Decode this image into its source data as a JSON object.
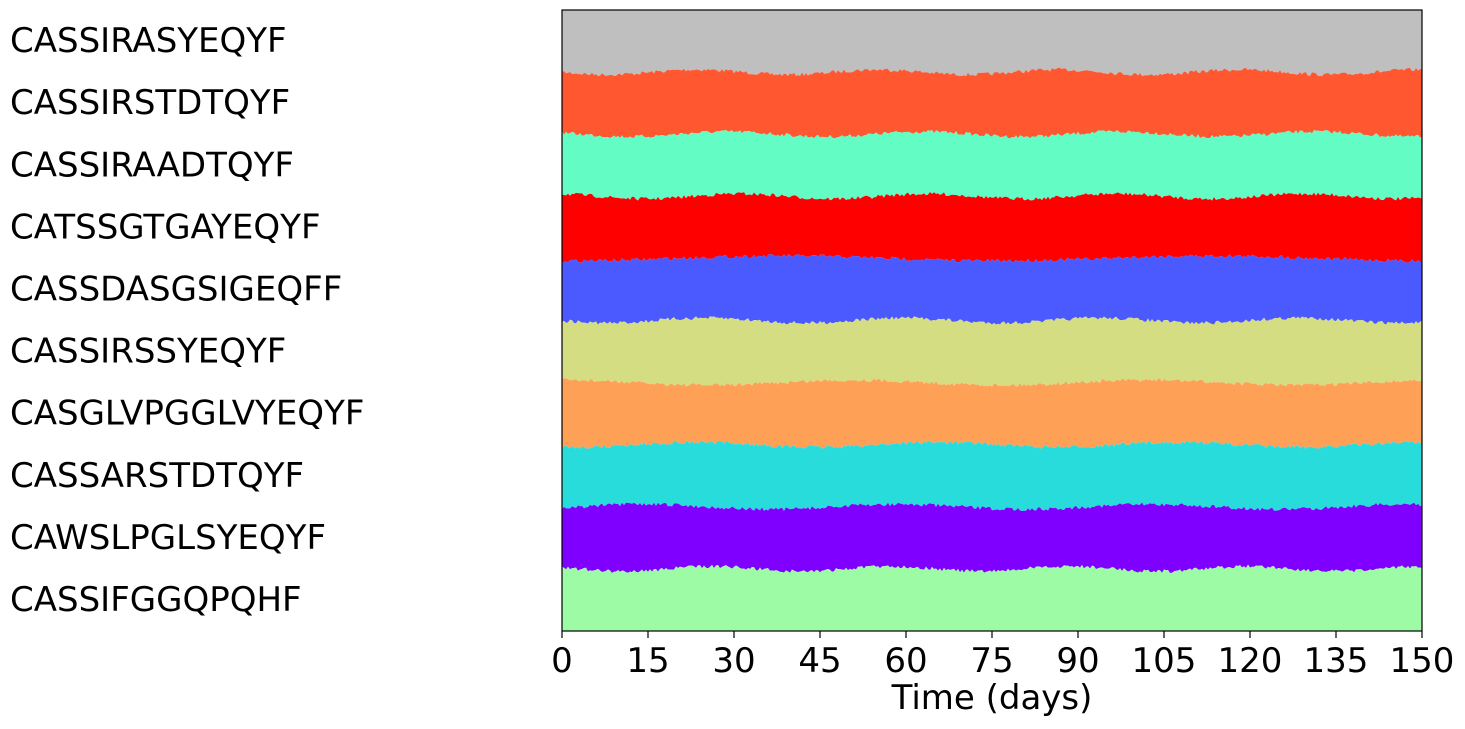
{
  "chart_data": {
    "type": "area",
    "subtype": "stacked-streamgraph",
    "title": "",
    "xlabel": "Time (days)",
    "ylabel": "",
    "xlim": [
      0,
      150
    ],
    "xticks": [
      0,
      15,
      30,
      45,
      60,
      75,
      90,
      105,
      120,
      135,
      150
    ],
    "grid": false,
    "legend": "left-side labels aligned with bands",
    "series": [
      {
        "name": "CASSIRASYEQYF",
        "color": "#bfbfbf",
        "mean_share": 0.1
      },
      {
        "name": "CASSIRSTDTQYF",
        "color": "#ff5730",
        "mean_share": 0.1
      },
      {
        "name": "CASSIRAADTQYF",
        "color": "#62fcc4",
        "mean_share": 0.1
      },
      {
        "name": "CATSSGTGAYEQYF",
        "color": "#ff0000",
        "mean_share": 0.1
      },
      {
        "name": "CASSDASGSIGEQFF",
        "color": "#4b5aff",
        "mean_share": 0.1
      },
      {
        "name": "CASSIRSSYEQYF",
        "color": "#d5dd82",
        "mean_share": 0.1
      },
      {
        "name": "CASGLVPGGLVYEQYF",
        "color": "#ffa057",
        "mean_share": 0.1
      },
      {
        "name": "CASSARSTDTQYF",
        "color": "#29dcdc",
        "mean_share": 0.1
      },
      {
        "name": "CAWSLPGLSYEQYF",
        "color": "#8000ff",
        "mean_share": 0.1
      },
      {
        "name": "CASSIFGGQPQHF",
        "color": "#9cfba4",
        "mean_share": 0.1
      }
    ]
  }
}
